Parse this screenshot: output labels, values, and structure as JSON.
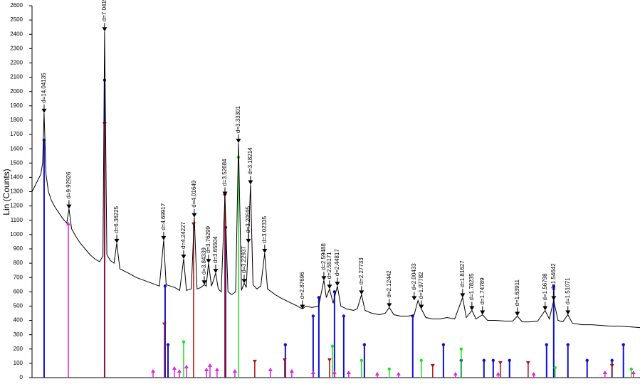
{
  "chart_data": {
    "type": "line",
    "ylabel": "Lin (Counts)",
    "xlim": [
      5,
      68
    ],
    "ylim": [
      0,
      2600
    ],
    "yticks": [
      0,
      100,
      200,
      300,
      400,
      500,
      600,
      700,
      800,
      900,
      1000,
      1100,
      1200,
      1300,
      1400,
      1500,
      1600,
      1700,
      1800,
      1900,
      2000,
      2100,
      2200,
      2300,
      2400,
      2500,
      2600
    ],
    "series": [
      {
        "color": "#000000",
        "x": [
          5.0,
          5.3,
          5.6,
          5.9,
          6.1,
          6.25,
          6.45,
          6.7,
          7.0,
          7.4,
          7.8,
          8.2,
          8.6,
          8.83,
          9.1,
          9.6,
          10.0,
          10.5,
          11.0,
          11.5,
          12.0,
          12.35,
          12.52,
          12.75,
          13.1,
          13.5,
          13.78,
          14.1,
          15.0,
          15.8,
          16.6,
          17.4,
          18.2,
          18.64,
          18.9,
          19.8,
          20.3,
          20.71,
          21.0,
          21.5,
          21.81,
          22.1,
          22.5,
          22.85,
          23.05,
          23.29,
          23.6,
          24.03,
          24.3,
          24.6,
          24.99,
          25.3,
          25.7,
          26.1,
          26.39,
          26.7,
          26.98,
          27.2,
          27.42,
          27.64,
          27.9,
          28.3,
          28.7,
          29.11,
          29.4,
          29.8,
          30.2,
          30.7,
          31.3,
          31.9,
          32.5,
          33.02,
          33.4,
          34.0,
          34.7,
          35.24,
          35.5,
          35.83,
          36.2,
          36.64,
          37.0,
          37.6,
          38.3,
          38.7,
          39.14,
          39.5,
          40.2,
          41.0,
          41.6,
          42.02,
          42.5,
          43.2,
          44.0,
          44.6,
          45.0,
          45.34,
          45.8,
          46.5,
          47.3,
          48.0,
          48.8,
          49.62,
          50.0,
          50.58,
          51.0,
          51.68,
          52.2,
          53.0,
          54.0,
          54.8,
          55.29,
          55.8,
          56.6,
          57.4,
          58.17,
          58.6,
          59.06,
          59.5,
          60.0,
          60.53,
          61.0,
          62.0,
          63.0,
          64.0,
          65.0,
          66.0,
          67.0,
          68.0
        ],
        "values": [
          1300,
          1340,
          1380,
          1420,
          1500,
          1850,
          1420,
          1300,
          1240,
          1190,
          1150,
          1110,
          1080,
          1180,
          1040,
          980,
          940,
          900,
          860,
          830,
          810,
          850,
          2420,
          860,
          820,
          800,
          940,
          760,
          730,
          700,
          680,
          660,
          640,
          960,
          650,
          630,
          610,
          830,
          610,
          620,
          1120,
          620,
          630,
          650,
          640,
          800,
          640,
          730,
          620,
          600,
          1270,
          600,
          580,
          600,
          1640,
          610,
          660,
          630,
          940,
          1350,
          650,
          620,
          640,
          870,
          620,
          600,
          580,
          560,
          540,
          520,
          500,
          480,
          500,
          490,
          500,
          680,
          560,
          620,
          520,
          640,
          500,
          480,
          470,
          480,
          580,
          470,
          450,
          440,
          450,
          490,
          440,
          430,
          430,
          440,
          540,
          480,
          420,
          410,
          410,
          420,
          410,
          560,
          420,
          470,
          410,
          440,
          400,
          400,
          395,
          395,
          430,
          390,
          390,
          395,
          470,
          410,
          540,
          400,
          390,
          440,
          380,
          370,
          370,
          365,
          360,
          360,
          355,
          350
        ]
      }
    ],
    "peaks": [
      {
        "label": "d=14.04135",
        "x": 6.25,
        "y": 1850
      },
      {
        "label": "d=9.92926",
        "x": 8.83,
        "y": 1180
      },
      {
        "label": "d=7.04195",
        "x": 12.52,
        "y": 2420
      },
      {
        "label": "d=6.36225",
        "x": 13.78,
        "y": 940
      },
      {
        "label": "d=4.69917",
        "x": 18.64,
        "y": 960
      },
      {
        "label": "d=4.24227",
        "x": 20.71,
        "y": 830
      },
      {
        "label": "d=4.01649",
        "x": 21.81,
        "y": 1120
      },
      {
        "label": "d=3.84339",
        "x": 22.85,
        "y": 650
      },
      {
        "label": "d=3.76299",
        "x": 23.29,
        "y": 800
      },
      {
        "label": "d=3.65504",
        "x": 24.03,
        "y": 730
      },
      {
        "label": "d=3.52684",
        "x": 24.99,
        "y": 1270
      },
      {
        "label": "d=3.33301",
        "x": 26.39,
        "y": 1640
      },
      {
        "label": "d=3.22937",
        "x": 26.98,
        "y": 660
      },
      {
        "label": "d=3.20595",
        "x": 27.42,
        "y": 940
      },
      {
        "label": "d=3.18214",
        "x": 27.64,
        "y": 1350
      },
      {
        "label": "d=3.02335",
        "x": 29.11,
        "y": 870
      },
      {
        "label": "d=2.87696",
        "x": 33.02,
        "y": 480
      },
      {
        "label": "d=2.59488",
        "x": 35.24,
        "y": 680
      },
      {
        "label": "d=2.55171",
        "x": 35.83,
        "y": 620
      },
      {
        "label": "d=2.44817",
        "x": 36.64,
        "y": 640
      },
      {
        "label": "d=2.27733",
        "x": 39.14,
        "y": 580
      },
      {
        "label": "d=2.12442",
        "x": 42.02,
        "y": 490
      },
      {
        "label": "d=2.00433",
        "x": 44.6,
        "y": 540
      },
      {
        "label": "d=1.97782",
        "x": 45.34,
        "y": 480
      },
      {
        "label": "d=1.81627",
        "x": 49.62,
        "y": 560
      },
      {
        "label": "d=1.78235",
        "x": 50.58,
        "y": 470
      },
      {
        "label": "d=1.74789",
        "x": 51.68,
        "y": 440
      },
      {
        "label": "d=1.63911",
        "x": 55.29,
        "y": 430
      },
      {
        "label": "d=1.56798",
        "x": 58.17,
        "y": 470
      },
      {
        "label": "d=1.54642",
        "x": 59.06,
        "y": 540
      },
      {
        "label": "d=1.51071",
        "x": 60.53,
        "y": 440
      }
    ],
    "reference_patterns": [
      {
        "color": "#1010d0",
        "marker": "circle",
        "x": [
          6.25,
          12.52,
          18.79,
          19.09,
          25.06,
          31.25,
          34.13,
          34.72,
          36.34,
          37.3,
          39.44,
          44.45,
          47.63,
          49.47,
          51.83,
          52.79,
          54.48,
          58.32,
          59.06,
          60.53,
          62.52,
          65.1,
          66.28
        ],
        "values": [
          1660,
          2080,
          640,
          230,
          1050,
          230,
          430,
          560,
          600,
          430,
          230,
          430,
          230,
          120,
          120,
          120,
          120,
          230,
          640,
          230,
          120,
          120,
          230
        ]
      },
      {
        "color": "#b01010",
        "marker": "triangle-down",
        "x": [
          12.52,
          18.72,
          21.74,
          24.98,
          28.08,
          31.18,
          35.83,
          46.52,
          53.53,
          56.41,
          65.1
        ],
        "values": [
          1770,
          370,
          1070,
          1270,
          110,
          120,
          120,
          80,
          100,
          100,
          80
        ]
      },
      {
        "color": "#20e020",
        "marker": "circle",
        "x": [
          20.71,
          26.39,
          36.12,
          39.14,
          42.02,
          45.34,
          49.47,
          59.2,
          67.1
        ],
        "values": [
          250,
          1540,
          220,
          120,
          60,
          120,
          200,
          70,
          60
        ]
      },
      {
        "color": "#e020e0",
        "marker": "triangle-up",
        "x": [
          8.76,
          17.54,
          19.75,
          20.27,
          21.0,
          23.07,
          23.44,
          24.17,
          26.02,
          29.7,
          31.92,
          34.13,
          36.34,
          37.82,
          40.77,
          42.98,
          48.88,
          53.3,
          56.99,
          64.37,
          67.32
        ],
        "values": [
          1080,
          50,
          70,
          50,
          80,
          60,
          90,
          60,
          50,
          60,
          50,
          40,
          40,
          40,
          30,
          30,
          30,
          30,
          30,
          40,
          40
        ]
      }
    ]
  }
}
